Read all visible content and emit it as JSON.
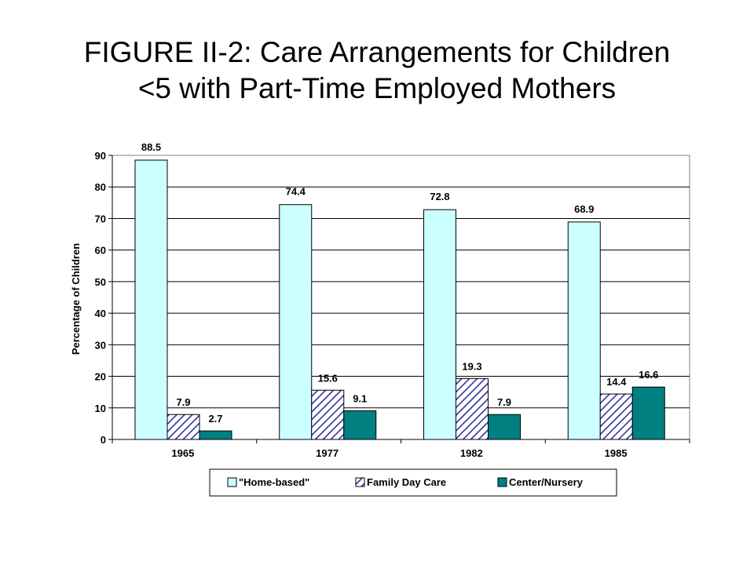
{
  "title": {
    "line1": "FIGURE II-2: Care Arrangements for Children",
    "line2": "<5 with Part-Time Employed Mothers"
  },
  "chart_data": {
    "type": "bar",
    "categories": [
      "1965",
      "1977",
      "1982",
      "1985"
    ],
    "series": [
      {
        "name": "\"Home-based\"",
        "values": [
          88.5,
          74.4,
          72.8,
          68.9
        ],
        "labels": [
          "88.5",
          "74.4",
          "72.8",
          "68.9"
        ],
        "color": "#ccffff",
        "pattern": "solid"
      },
      {
        "name": "Family Day Care",
        "values": [
          7.9,
          15.6,
          19.3,
          14.4
        ],
        "labels": [
          "7.9",
          "15.6",
          "19.3",
          "14.4"
        ],
        "color": "#333399",
        "pattern": "diagonal-hatch"
      },
      {
        "name": "Center/Nursery",
        "values": [
          2.7,
          9.1,
          7.9,
          16.6
        ],
        "labels": [
          "2.7",
          "9.1",
          "7.9",
          "16.6"
        ],
        "color": "#008080",
        "pattern": "solid"
      }
    ],
    "ylabel": "Percentage of Children",
    "xlabel": "",
    "ylim": [
      0,
      90
    ],
    "yticks": [
      "0",
      "10",
      "20",
      "30",
      "40",
      "50",
      "60",
      "70",
      "80",
      "90"
    ],
    "grid": true,
    "legend_position": "bottom"
  }
}
